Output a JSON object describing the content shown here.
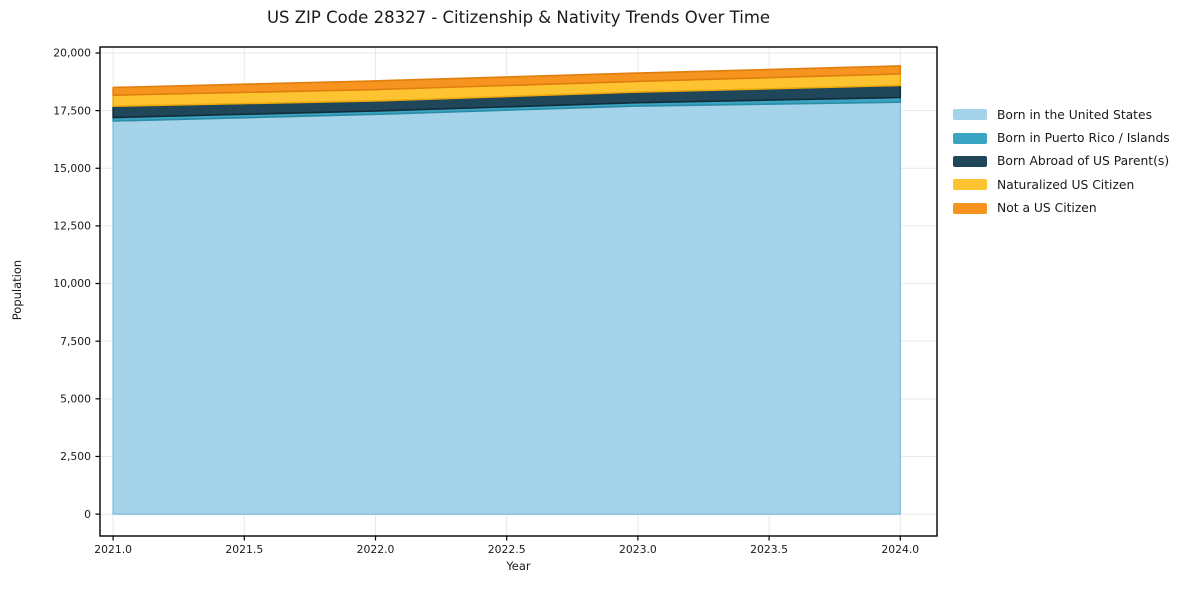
{
  "title": "US ZIP Code 28327 - Citizenship & Nativity Trends Over Time",
  "axes": {
    "xlabel": "Year",
    "ylabel": "Population"
  },
  "chart_data": {
    "type": "area",
    "stacked": true,
    "title": "US ZIP Code 28327 - Citizenship & Nativity Trends Over Time",
    "xlabel": "Year",
    "ylabel": "Population",
    "x": [
      2021,
      2022,
      2023,
      2024
    ],
    "series": [
      {
        "name": "Born in the United States",
        "values": [
          17050,
          17340,
          17700,
          17865
        ],
        "color": "#a4d3ea",
        "edge_color": "#8cc3de"
      },
      {
        "name": "Born in Puerto Rico / Islands",
        "values": [
          150,
          145,
          145,
          205
        ],
        "color": "#3aa5c2",
        "edge_color": "#2d8ba6"
      },
      {
        "name": "Born Abroad of US Parent(s)",
        "values": [
          490,
          435,
          460,
          520
        ],
        "color": "#1f4659",
        "edge_color": "#132c3a"
      },
      {
        "name": "Naturalized US Citizen",
        "values": [
          480,
          495,
          465,
          505
        ],
        "color": "#fdc330",
        "edge_color": "#eda90e"
      },
      {
        "name": "Not a US Citizen",
        "values": [
          335,
          375,
          360,
          345
        ],
        "color": "#f79420",
        "edge_color": "#e07e0e"
      }
    ],
    "totals_by_year": [
      18505,
      18790,
      19130,
      19440
    ],
    "xlim": [
      2020.95,
      2024.14
    ],
    "ylim": [
      -950,
      20260
    ],
    "x_ticks": {
      "values": [
        2021.0,
        2021.5,
        2022.0,
        2022.5,
        2023.0,
        2023.5,
        2024.0
      ],
      "labels": [
        "2021.0",
        "2021.5",
        "2022.0",
        "2022.5",
        "2023.0",
        "2023.5",
        "2024.0"
      ]
    },
    "y_ticks": {
      "values": [
        0,
        2500,
        5000,
        7500,
        10000,
        12500,
        15000,
        17500,
        20000
      ],
      "labels": [
        "0",
        "2,500",
        "5,000",
        "7,500",
        "10,000",
        "12,500",
        "15,000",
        "17,500",
        "20,000"
      ]
    },
    "grid": true,
    "grid_color": "#e9e9e9",
    "spine_color": "#000000",
    "tick_text_color": "#1a1a1a",
    "legend_position": "right-outside",
    "legend_frame": false
  }
}
